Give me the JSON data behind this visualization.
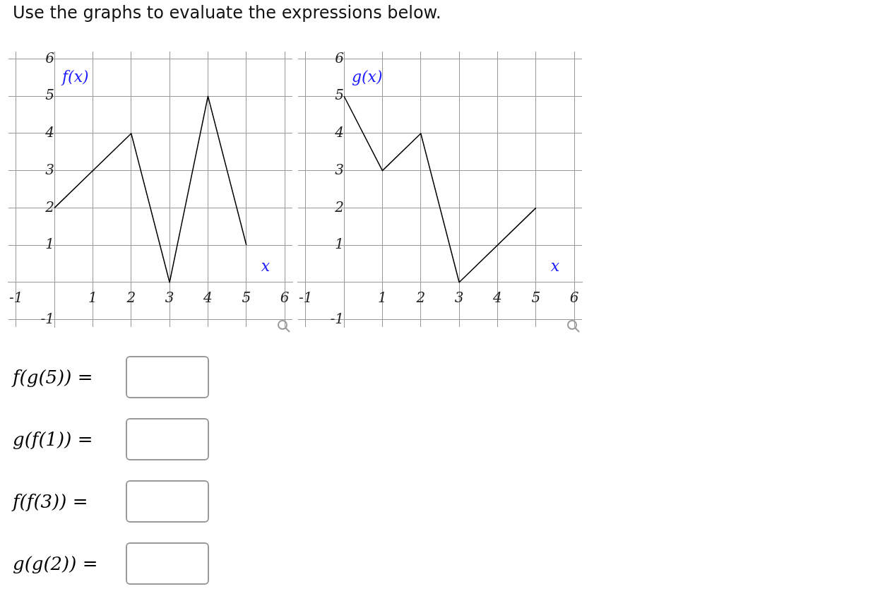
{
  "chart_data": [
    {
      "type": "line",
      "title": "Use the graphs to evaluate the expressions below.",
      "xlabel": "x",
      "x": [
        0,
        2,
        3,
        4,
        5
      ],
      "series": [
        {
          "name": "f(x)",
          "color": "#000000",
          "values": [
            2,
            4,
            0,
            5,
            1
          ]
        }
      ],
      "xlim": [
        -1.2,
        6.2
      ],
      "ylim": [
        -1.2,
        6.2
      ],
      "xticks": [
        -1,
        {
          "value": 0,
          "label": null
        },
        1,
        2,
        3,
        4,
        5,
        6
      ],
      "yticks": [
        -1,
        {
          "value": 0,
          "label": null
        },
        1,
        2,
        3,
        4,
        5,
        6
      ],
      "grid": true,
      "legend": false,
      "marker": "none",
      "line_style": "solid",
      "annotations": [
        "f(g(5)) =",
        "g(f(1)) =",
        "f(f(3)) =",
        "g(g(2)) ="
      ]
    },
    {
      "type": "line",
      "xlabel": "x",
      "x": [
        0,
        1,
        2,
        3,
        5
      ],
      "series": [
        {
          "name": "g(x)",
          "color": "#000000",
          "values": [
            5,
            3,
            4,
            0,
            2
          ]
        }
      ],
      "xlim": [
        -1.2,
        6.2
      ],
      "ylim": [
        -1.2,
        6.2
      ],
      "xticks": [
        -1,
        {
          "value": 0,
          "label": null
        },
        1,
        2,
        3,
        4,
        5,
        6
      ],
      "yticks": [
        -1,
        {
          "value": 0,
          "label": null
        },
        1,
        2,
        3,
        4,
        5,
        6
      ],
      "grid": true,
      "legend": false,
      "marker": "none",
      "line_style": "solid"
    }
  ]
}
